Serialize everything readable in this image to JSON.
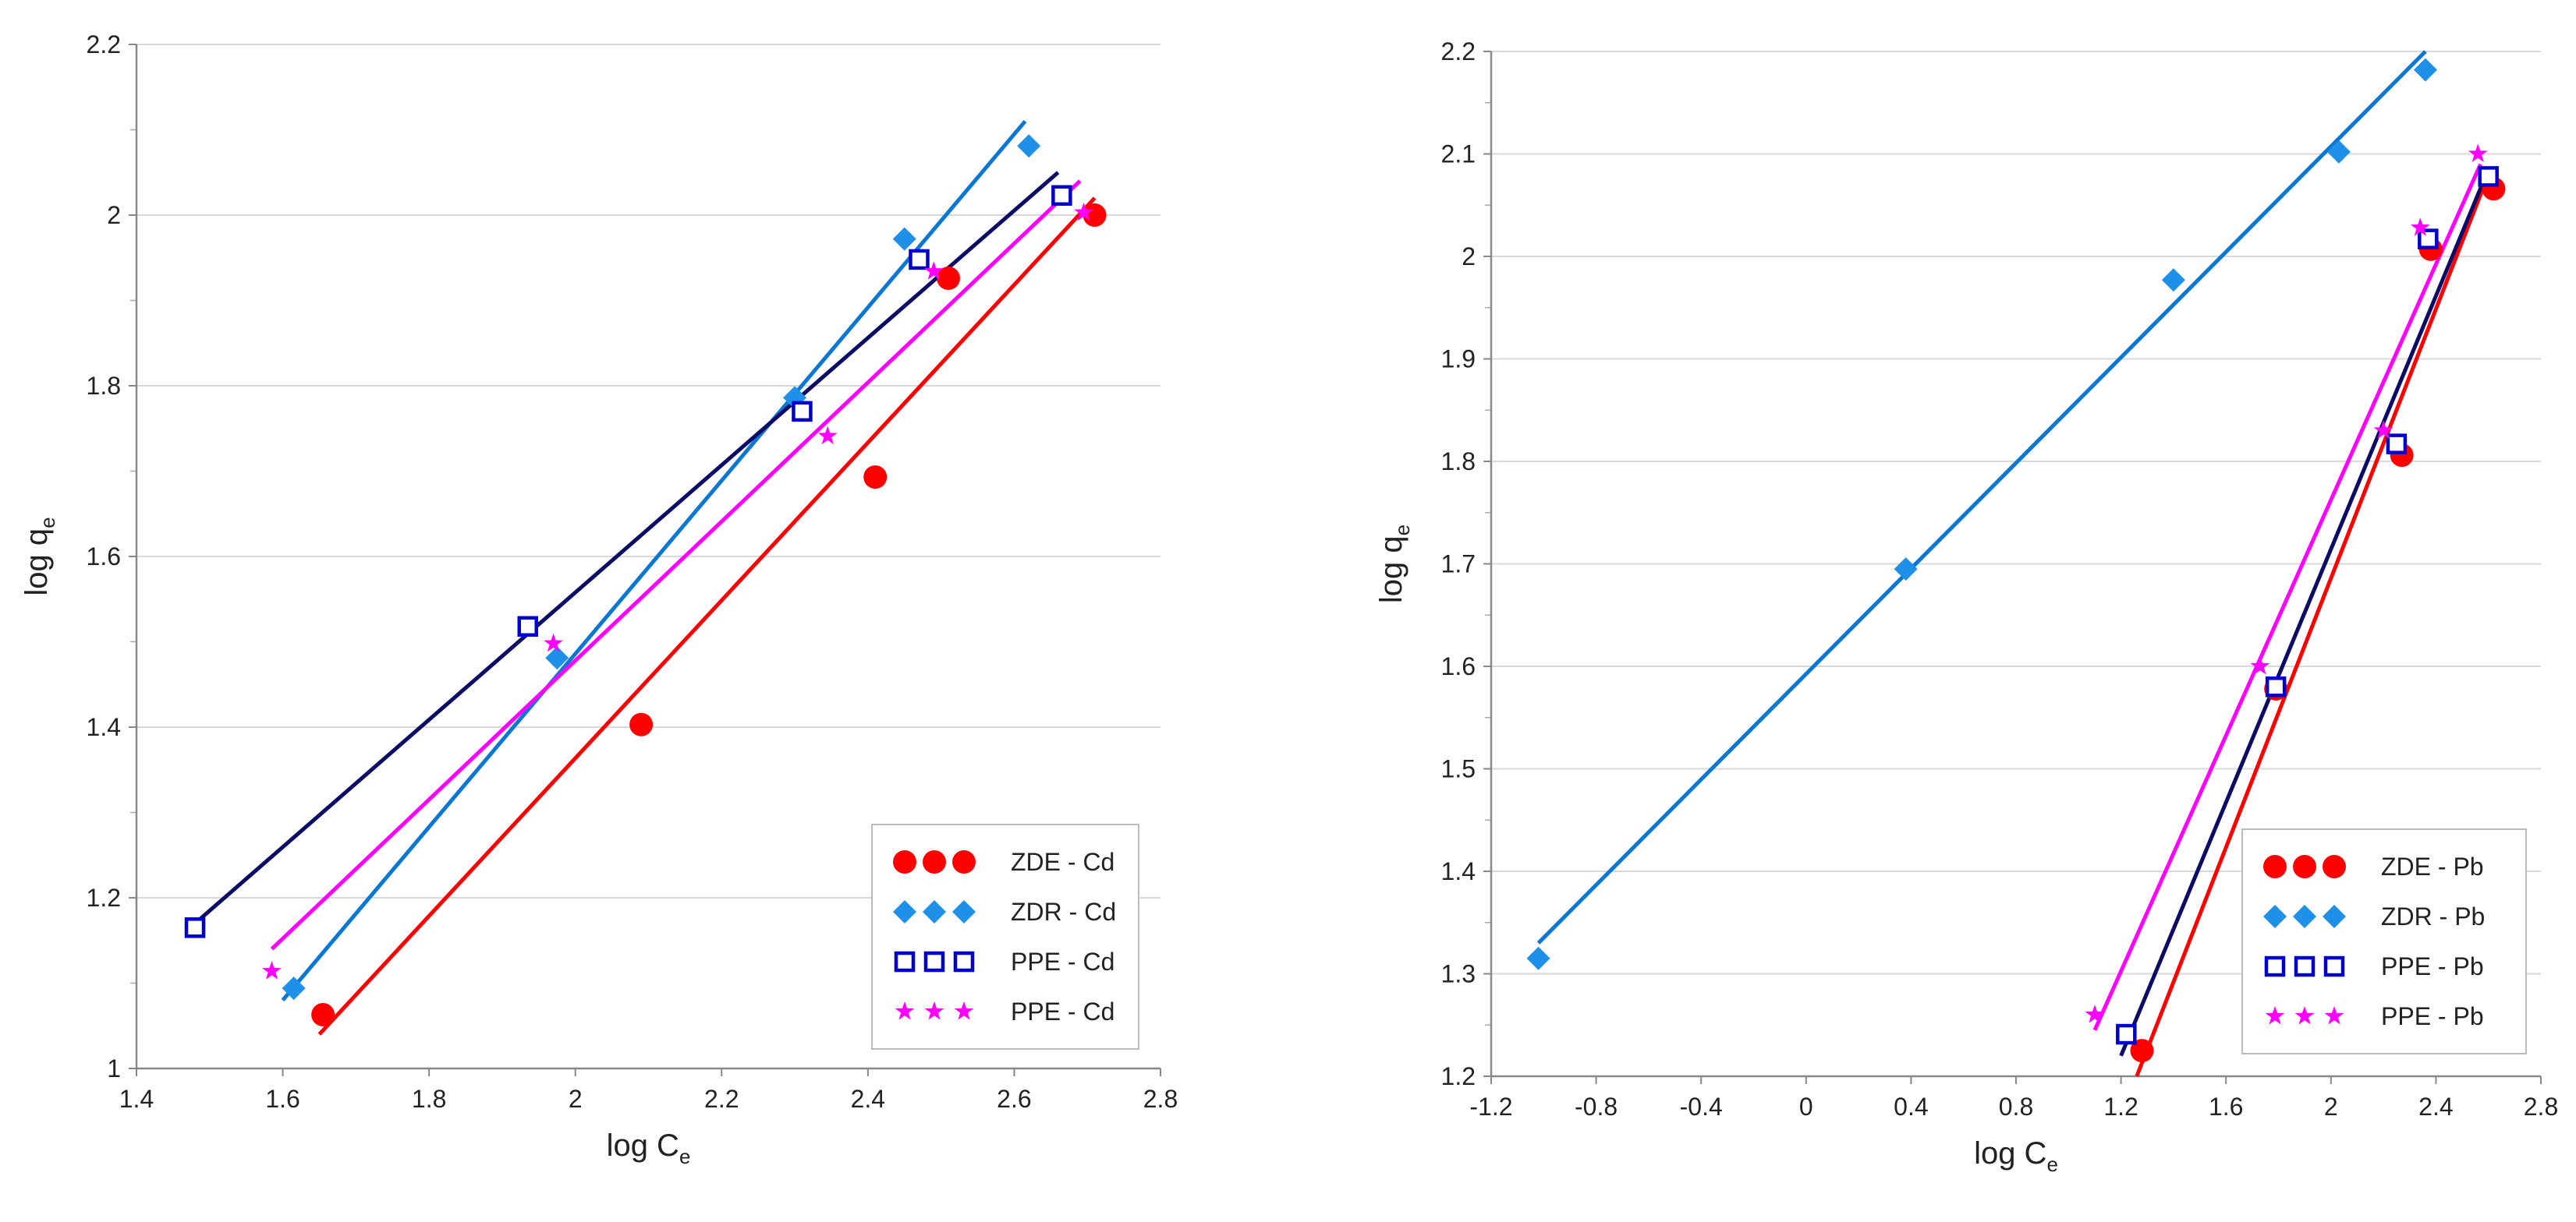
{
  "chart_data": [
    {
      "type": "scatter",
      "xlabel": "log C",
      "xlabel_sub": "e",
      "ylabel": "log q",
      "ylabel_sub": "e",
      "xlim": [
        1.4,
        2.8
      ],
      "ylim": [
        1.0,
        2.2
      ],
      "x_ticks": [
        "1.4",
        "1.6",
        "1.8",
        "2",
        "2.2",
        "2.4",
        "2.6",
        "2.8"
      ],
      "y_ticks": [
        "1",
        "1.2",
        "1.4",
        "1.6",
        "1.8",
        "2",
        "2.2"
      ],
      "grid": true,
      "legend_position": "bottom-right",
      "series": [
        {
          "name": "ZDE - Cd",
          "marker": "circle",
          "color": "#ff0000",
          "x": [
            1.655,
            2.09,
            2.41,
            2.51,
            2.71
          ],
          "y": [
            1.063,
            1.403,
            1.693,
            1.926,
            2.0
          ],
          "fit": [
            [
              1.65,
              1.04
            ],
            [
              2.71,
              2.02
            ]
          ]
        },
        {
          "name": "ZDR - Cd",
          "marker": "diamond",
          "color": "#1e90e8",
          "x": [
            1.615,
            1.975,
            2.3,
            2.45,
            2.62
          ],
          "y": [
            1.094,
            1.481,
            1.786,
            1.972,
            2.081
          ],
          "fit": [
            [
              1.6,
              1.08
            ],
            [
              2.615,
              2.11
            ]
          ]
        },
        {
          "name": "PPE - Cd",
          "marker": "square",
          "color": "#0000cc",
          "x": [
            1.48,
            1.935,
            2.31,
            2.47,
            2.665
          ],
          "y": [
            1.165,
            1.518,
            1.77,
            1.948,
            2.023
          ],
          "fit": [
            [
              1.48,
              1.17
            ],
            [
              2.66,
              2.05
            ]
          ]
        },
        {
          "name": "PPE - Cd",
          "marker": "star",
          "color": "#ff00ff",
          "x": [
            1.585,
            1.97,
            2.345,
            2.49,
            2.695
          ],
          "y": [
            1.114,
            1.498,
            1.741,
            1.934,
            2.003
          ],
          "fit": [
            [
              1.585,
              1.14
            ],
            [
              2.69,
              2.04
            ]
          ]
        }
      ]
    },
    {
      "type": "scatter",
      "xlabel": "log C",
      "xlabel_sub": "e",
      "ylabel": "log q",
      "ylabel_sub": "e",
      "xlim": [
        -1.2,
        2.8
      ],
      "ylim": [
        1.2,
        2.2
      ],
      "x_ticks": [
        "-1.2",
        "-0.8",
        "-0.4",
        "0",
        "0.4",
        "0.8",
        "1.2",
        "1.6",
        "2",
        "2.4",
        "2.8"
      ],
      "y_ticks": [
        "1.2",
        "1.3",
        "1.4",
        "1.5",
        "1.6",
        "1.7",
        "1.8",
        "1.9",
        "2",
        "2.1",
        "2.2"
      ],
      "grid": true,
      "legend_position": "bottom-right",
      "series": [
        {
          "name": "ZDE - Pb",
          "marker": "circle",
          "color": "#ff0000",
          "x": [
            1.28,
            1.79,
            2.27,
            2.38,
            2.62
          ],
          "y": [
            1.225,
            1.578,
            1.806,
            2.007,
            2.066
          ],
          "fit": [
            [
              1.26,
              1.2
            ],
            [
              2.6,
              2.08
            ]
          ]
        },
        {
          "name": "ZDR - Pb",
          "marker": "diamond",
          "color": "#1e90e8",
          "x": [
            -1.02,
            0.38,
            1.4,
            2.03,
            2.36
          ],
          "y": [
            1.315,
            1.695,
            1.977,
            2.102,
            2.182
          ],
          "fit": [
            [
              -1.02,
              1.33
            ],
            [
              2.36,
              2.2
            ]
          ]
        },
        {
          "name": "PPE - Pb",
          "marker": "square",
          "color": "#0000cc",
          "x": [
            1.22,
            1.79,
            2.25,
            2.37,
            2.6
          ],
          "y": [
            1.241,
            1.58,
            1.817,
            2.017,
            2.078
          ],
          "fit": [
            [
              1.2,
              1.22
            ],
            [
              2.6,
              2.085
            ]
          ]
        },
        {
          "name": "PPE - Pb",
          "marker": "star",
          "color": "#ff00ff",
          "x": [
            1.1,
            1.73,
            2.2,
            2.34,
            2.56
          ],
          "y": [
            1.26,
            1.6,
            1.83,
            2.028,
            2.1
          ],
          "fit": [
            [
              1.1,
              1.245
            ],
            [
              2.57,
              2.09
            ]
          ]
        }
      ]
    }
  ]
}
